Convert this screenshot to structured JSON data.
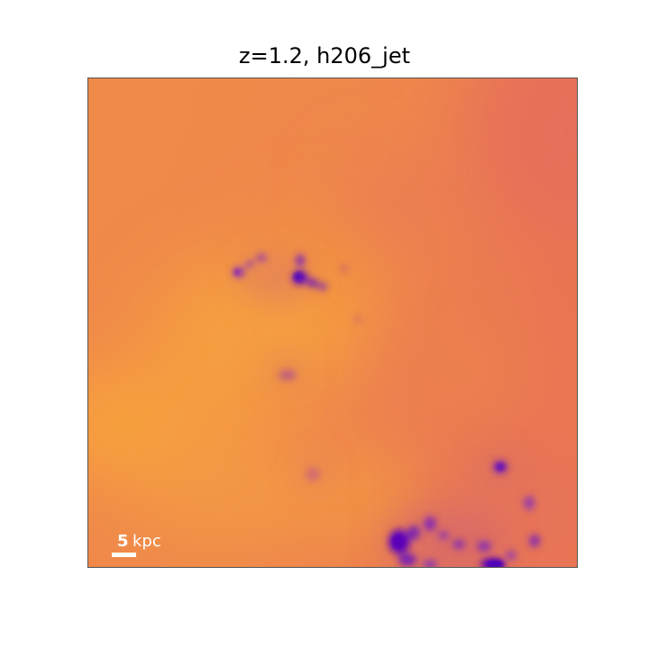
{
  "figure": {
    "title": "z=1.2, h206_jet",
    "scale_bar": {
      "value": "5",
      "unit": "kpc"
    }
  },
  "colors": {
    "background_orange": "#f0884a",
    "warm_yellow": "#f9a43a",
    "cool_red": "#e5705a",
    "clump_purple": "#6a0fb0",
    "clump_magenta": "#a33ca0"
  }
}
